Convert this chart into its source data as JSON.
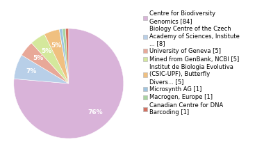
{
  "labels": [
    "Centre for Biodiversity\nGenomics [84]",
    "Biology Centre of the Czech\nAcademy of Sciences, Institute\n... [8]",
    "University of Geneva [5]",
    "Mined from GenBank, NCBI [5]",
    "Institut de Biologia Evolutiva\n(CSIC-UPF), Butterfly\nDivers... [5]",
    "Microsynth AG [1]",
    "Macrogen, Europe [1]",
    "Canadian Centre for DNA\nBarcoding [1]"
  ],
  "values": [
    84,
    8,
    5,
    5,
    5,
    1,
    1,
    1
  ],
  "colors": [
    "#d9b3d9",
    "#b8cfe8",
    "#e8a898",
    "#d4e89c",
    "#f0c080",
    "#9ec4e0",
    "#a8d4a0",
    "#d47060"
  ],
  "background_color": "#ffffff",
  "text_fontsize": 6.5,
  "legend_fontsize": 6.0
}
